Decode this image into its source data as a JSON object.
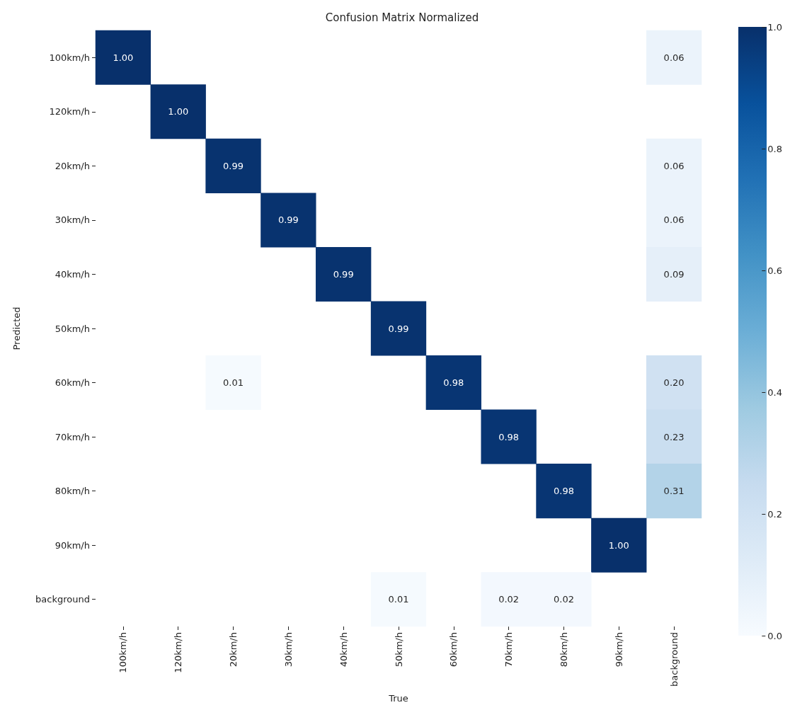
{
  "chart_data": {
    "type": "heatmap",
    "title": "Confusion Matrix Normalized",
    "xlabel": "True",
    "ylabel": "Predicted",
    "categories": [
      "100km/h",
      "120km/h",
      "20km/h",
      "30km/h",
      "40km/h",
      "50km/h",
      "60km/h",
      "70km/h",
      "80km/h",
      "90km/h",
      "background"
    ],
    "y_categories": [
      "100km/h",
      "120km/h",
      "20km/h",
      "30km/h",
      "40km/h",
      "50km/h",
      "60km/h",
      "70km/h",
      "80km/h",
      "90km/h",
      "background"
    ],
    "cells": [
      [
        1.0,
        null,
        null,
        null,
        null,
        null,
        null,
        null,
        null,
        null,
        0.06
      ],
      [
        null,
        1.0,
        null,
        null,
        null,
        null,
        null,
        null,
        null,
        null,
        null
      ],
      [
        null,
        null,
        0.99,
        null,
        null,
        null,
        null,
        null,
        null,
        null,
        0.06
      ],
      [
        null,
        null,
        null,
        0.99,
        null,
        null,
        null,
        null,
        null,
        null,
        0.06
      ],
      [
        null,
        null,
        null,
        null,
        0.99,
        null,
        null,
        null,
        null,
        null,
        0.09
      ],
      [
        null,
        null,
        null,
        null,
        null,
        0.99,
        null,
        null,
        null,
        null,
        null
      ],
      [
        null,
        null,
        0.01,
        null,
        null,
        null,
        0.98,
        null,
        null,
        null,
        0.2
      ],
      [
        null,
        null,
        null,
        null,
        null,
        null,
        null,
        0.98,
        null,
        null,
        0.23
      ],
      [
        null,
        null,
        null,
        null,
        null,
        null,
        null,
        null,
        0.98,
        null,
        0.31
      ],
      [
        null,
        null,
        null,
        null,
        null,
        null,
        null,
        null,
        null,
        1.0,
        null
      ],
      [
        null,
        null,
        null,
        null,
        null,
        0.01,
        null,
        0.02,
        0.02,
        null,
        null
      ]
    ],
    "cell_labels": [
      [
        "1.00",
        null,
        null,
        null,
        null,
        null,
        null,
        null,
        null,
        null,
        "0.06"
      ],
      [
        null,
        "1.00",
        null,
        null,
        null,
        null,
        null,
        null,
        null,
        null,
        null
      ],
      [
        null,
        null,
        "0.99",
        null,
        null,
        null,
        null,
        null,
        null,
        null,
        "0.06"
      ],
      [
        null,
        null,
        null,
        "0.99",
        null,
        null,
        null,
        null,
        null,
        null,
        "0.06"
      ],
      [
        null,
        null,
        null,
        null,
        "0.99",
        null,
        null,
        null,
        null,
        null,
        "0.09"
      ],
      [
        null,
        null,
        null,
        null,
        null,
        "0.99",
        null,
        null,
        null,
        null,
        null
      ],
      [
        null,
        null,
        "0.01",
        null,
        null,
        null,
        "0.98",
        null,
        null,
        null,
        "0.20"
      ],
      [
        null,
        null,
        null,
        null,
        null,
        null,
        null,
        "0.98",
        null,
        null,
        "0.23"
      ],
      [
        null,
        null,
        null,
        null,
        null,
        null,
        null,
        null,
        "0.98",
        null,
        "0.31"
      ],
      [
        null,
        null,
        null,
        null,
        null,
        null,
        null,
        null,
        null,
        "1.00",
        null
      ],
      [
        null,
        null,
        null,
        null,
        null,
        "0.01",
        null,
        "0.02",
        "0.02",
        null,
        null
      ]
    ],
    "clim": [
      0,
      1
    ],
    "cticks": [
      {
        "value": 0,
        "label": "0.0"
      },
      0.2,
      0.4,
      0.6,
      0.8,
      {
        "value": 1,
        "label": "1.0"
      }
    ]
  }
}
